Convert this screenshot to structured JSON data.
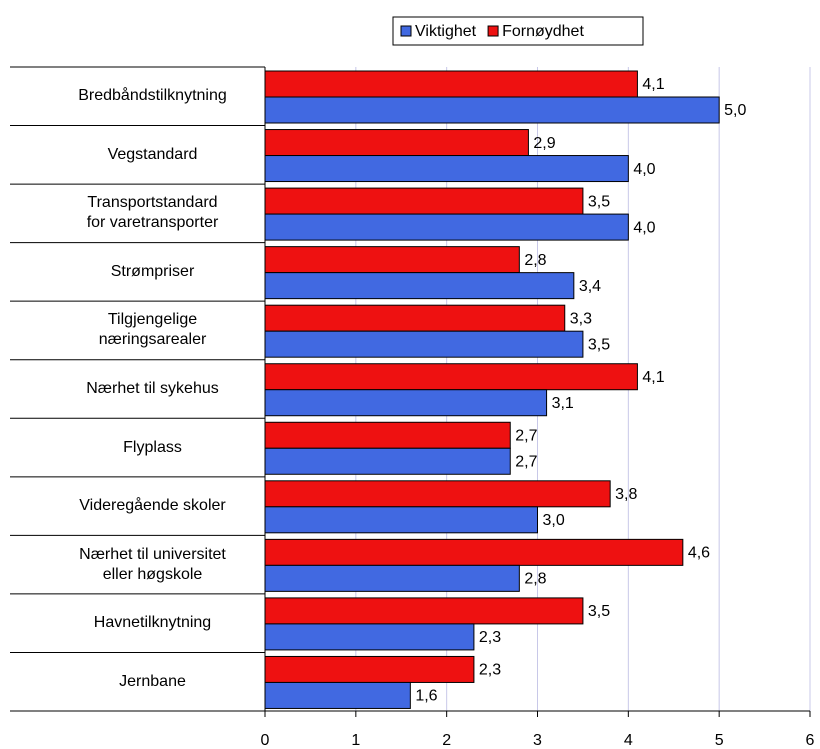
{
  "chart_data": {
    "type": "hbar",
    "categories": [
      "Bredbåndstilknytning",
      "Vegstandard",
      "Transportstandard\nfor varetransporter",
      "Strømpriser",
      "Tilgjengelige\nnæringsarealer",
      "Nærhet til sykehus",
      "Flyplass",
      "Videregående skoler",
      "Nærhet til universitet\neller høgskole",
      "Havnetilknytning",
      "Jernbane"
    ],
    "series": [
      {
        "name": "Viktighet",
        "color": "#4169e1",
        "values": [
          5.0,
          4.0,
          4.0,
          3.4,
          3.5,
          3.1,
          2.7,
          3.0,
          2.8,
          2.3,
          1.6
        ],
        "value_labels": [
          "5,0",
          "4,0",
          "4,0",
          "3,4",
          "3,5",
          "3,1",
          "2,7",
          "3,0",
          "2,8",
          "2,3",
          "1,6"
        ]
      },
      {
        "name": "Fornøydhet",
        "color": "#ee1111",
        "values": [
          4.1,
          2.9,
          3.5,
          2.8,
          3.3,
          4.1,
          2.7,
          3.8,
          4.6,
          3.5,
          2.3
        ],
        "value_labels": [
          "4,1",
          "2,9",
          "3,5",
          "2,8",
          "3,3",
          "4,1",
          "2,7",
          "3,8",
          "4,6",
          "3,5",
          "2,3"
        ]
      }
    ],
    "xlim": [
      0,
      6
    ],
    "xticks": [
      0,
      1,
      2,
      3,
      4,
      5,
      6
    ],
    "grid": true,
    "legend": "top"
  }
}
